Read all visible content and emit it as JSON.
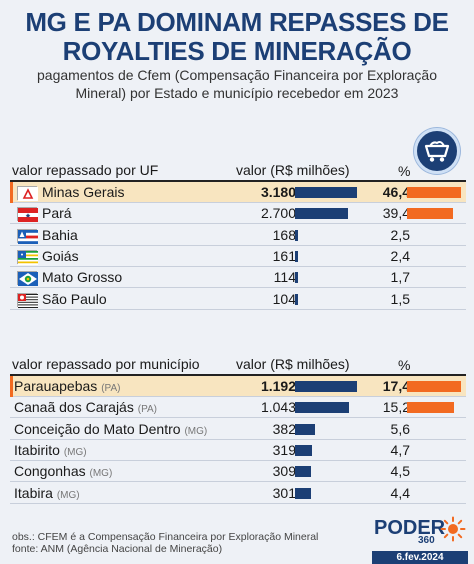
{
  "header": {
    "title_line1": "MG E PA DOMINAM REPASSES DE",
    "title_line2": "ROYALTIES DE MINERAÇÃO",
    "subtitle_line1": "pagamentos de Cfem (Compensação Financeira por Exploração",
    "subtitle_line2": "Mineral) por Estado e município recebedor em 2023"
  },
  "icons": {
    "badge": "mine-cart-icon"
  },
  "colors": {
    "navy": "#1c3f75",
    "orange": "#f26a21",
    "highlight": "#f8e5c0"
  },
  "states_table": {
    "col_label": "valor repassado por UF",
    "col_value": "valor (R$ milhões)",
    "col_pct": "%"
  },
  "municipalities_table": {
    "col_label": "valor repassado por município",
    "col_value": "valor (R$ milhões)",
    "col_pct": "%"
  },
  "chart_data": [
    {
      "type": "bar",
      "categories": [
        "Minas Gerais",
        "Pará",
        "Bahia",
        "Goiás",
        "Mato Grosso",
        "São Paulo"
      ],
      "series": [
        {
          "name": "valor (R$ milhões)",
          "values": [
            3180,
            2700,
            168,
            161,
            114,
            104
          ],
          "labels": [
            "3.180",
            "2.700",
            "168",
            "161",
            "114",
            "104"
          ]
        },
        {
          "name": "%",
          "values": [
            46.4,
            39.4,
            2.5,
            2.4,
            1.7,
            1.5
          ],
          "labels": [
            "46,4",
            "39,4",
            "2,5",
            "2,4",
            "1,7",
            "1,5"
          ]
        }
      ],
      "flags": [
        "mg-flag-icon",
        "pa-flag-icon",
        "ba-flag-icon",
        "go-flag-icon",
        "mt-flag-icon",
        "sp-flag-icon"
      ],
      "highlight_index": 0
    },
    {
      "type": "bar",
      "categories": [
        "Parauapebas",
        "Canaã dos Carajás",
        "Conceição do Mato Dentro",
        "Itabirito",
        "Congonhas",
        "Itabira"
      ],
      "state_tags": [
        "(PA)",
        "(PA)",
        "(MG)",
        "(MG)",
        "(MG)",
        "(MG)"
      ],
      "series": [
        {
          "name": "valor (R$ milhões)",
          "values": [
            1192,
            1043,
            382,
            319,
            309,
            301
          ],
          "labels": [
            "1.192",
            "1.043",
            "382",
            "319",
            "309",
            "301"
          ]
        },
        {
          "name": "%",
          "values": [
            17.4,
            15.2,
            5.6,
            4.7,
            4.5,
            4.4
          ],
          "labels": [
            "17,4",
            "15,2",
            "5,6",
            "4,7",
            "4,5",
            "4,4"
          ]
        }
      ],
      "highlight_index": 0
    }
  ],
  "footer": {
    "note": "obs.: CFEM é a Compensação Financeira por Exploração Mineral",
    "source": "fonte: ANM (Agência Nacional de Mineração)",
    "logo_text": "PODER",
    "logo_number": "360",
    "date": "6.fev.2024"
  }
}
